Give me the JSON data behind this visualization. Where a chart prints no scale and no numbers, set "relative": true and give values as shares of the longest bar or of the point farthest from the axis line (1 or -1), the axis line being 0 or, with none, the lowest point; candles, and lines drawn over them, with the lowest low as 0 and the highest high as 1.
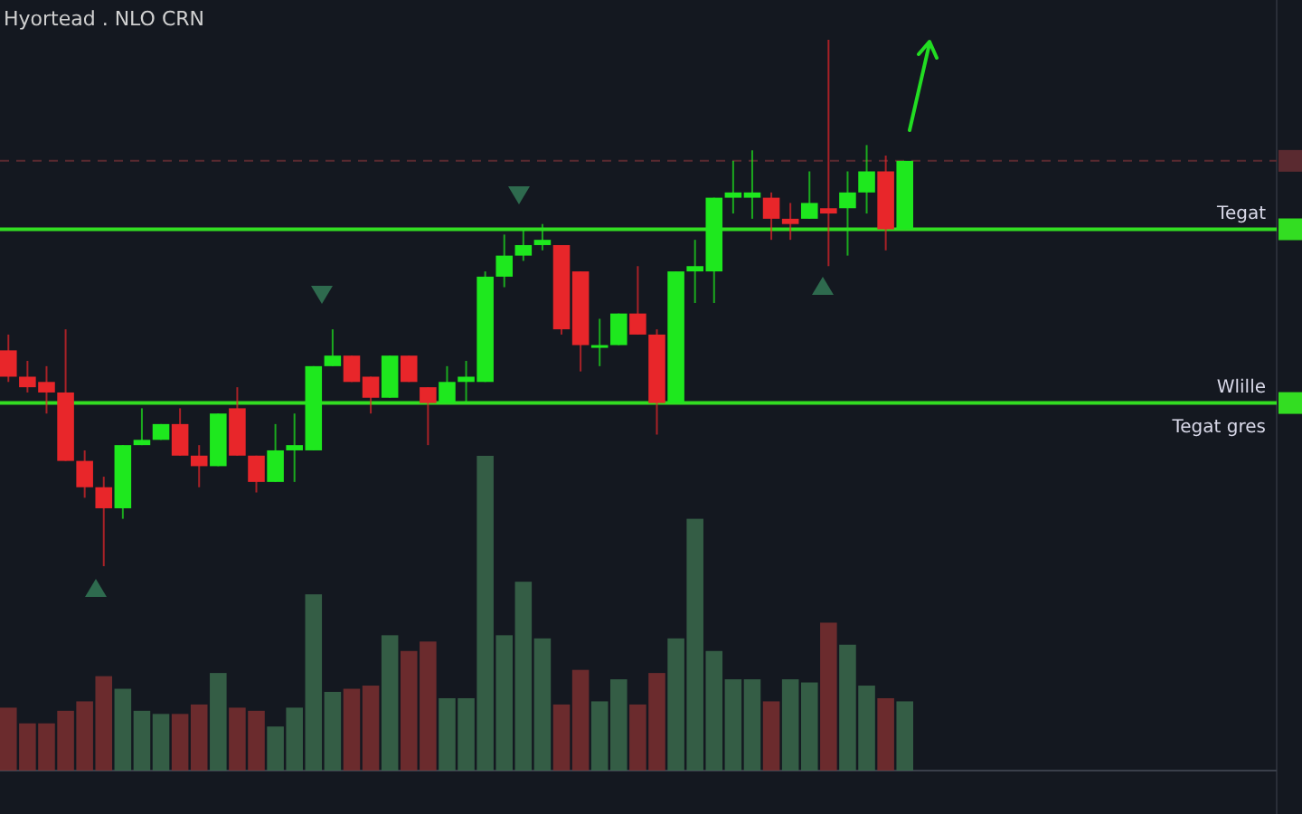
{
  "chart_data": [
    {
      "type": "candlestick",
      "title": "Hyortead . NLO CRN",
      "relative": true,
      "categories": [
        null,
        null,
        null,
        null,
        null,
        null,
        null,
        null,
        null,
        null,
        null,
        null,
        null,
        null,
        null,
        null,
        null,
        null,
        null,
        null,
        null,
        null,
        null,
        null,
        null,
        null,
        null,
        null,
        null,
        null,
        null,
        null,
        null,
        null,
        null,
        null,
        null,
        null,
        null,
        null,
        null,
        null,
        null,
        null,
        null,
        null,
        null,
        null
      ],
      "ohlc": [
        [
          0.41,
          0.44,
          0.35,
          0.36
        ],
        [
          0.36,
          0.39,
          0.33,
          0.34
        ],
        [
          0.35,
          0.38,
          0.29,
          0.33
        ],
        [
          0.33,
          0.45,
          0.2,
          0.2
        ],
        [
          0.2,
          0.22,
          0.13,
          0.15
        ],
        [
          0.15,
          0.17,
          0,
          0.11
        ],
        [
          0.11,
          0.23,
          0.09,
          0.23
        ],
        [
          0.23,
          0.3,
          0.23,
          0.24
        ],
        [
          0.24,
          0.27,
          0.24,
          0.27
        ],
        [
          0.27,
          0.3,
          0.21,
          0.21
        ],
        [
          0.21,
          0.23,
          0.15,
          0.19
        ],
        [
          0.19,
          0.29,
          0.19,
          0.29
        ],
        [
          0.3,
          0.34,
          0.21,
          0.21
        ],
        [
          0.21,
          0.21,
          0.14,
          0.16
        ],
        [
          0.16,
          0.27,
          0.16,
          0.22
        ],
        [
          0.22,
          0.29,
          0.16,
          0.23
        ],
        [
          0.22,
          0.38,
          0.22,
          0.38
        ],
        [
          0.38,
          0.45,
          0.38,
          0.4
        ],
        [
          0.4,
          0.4,
          0.35,
          0.35
        ],
        [
          0.36,
          0.36,
          0.29,
          0.32
        ],
        [
          0.32,
          0.4,
          0.32,
          0.4
        ],
        [
          0.4,
          0.4,
          0.35,
          0.35
        ],
        [
          0.34,
          0.34,
          0.23,
          0.31
        ],
        [
          0.31,
          0.38,
          0.31,
          0.35
        ],
        [
          0.35,
          0.39,
          0.31,
          0.36
        ],
        [
          0.35,
          0.56,
          0.35,
          0.55
        ],
        [
          0.55,
          0.63,
          0.53,
          0.59
        ],
        [
          0.59,
          0.64,
          0.58,
          0.61
        ],
        [
          0.61,
          0.65,
          0.6,
          0.62
        ],
        [
          0.61,
          0.61,
          0.44,
          0.45
        ],
        [
          0.56,
          0.56,
          0.37,
          0.42
        ],
        [
          0.42,
          0.47,
          0.38,
          0.42
        ],
        [
          0.42,
          0.48,
          0.42,
          0.48
        ],
        [
          0.48,
          0.57,
          0.44,
          0.44
        ],
        [
          0.44,
          0.45,
          0.25,
          0.31
        ],
        [
          0.31,
          0.56,
          0.31,
          0.56
        ],
        [
          0.56,
          0.62,
          0.5,
          0.57
        ],
        [
          0.56,
          0.7,
          0.5,
          0.7
        ],
        [
          0.7,
          0.77,
          0.67,
          0.71
        ],
        [
          0.7,
          0.79,
          0.66,
          0.71
        ],
        [
          0.7,
          0.71,
          0.62,
          0.66
        ],
        [
          0.66,
          0.69,
          0.62,
          0.65
        ],
        [
          0.66,
          0.75,
          0.66,
          0.69
        ],
        [
          0.68,
          1,
          0.57,
          0.67
        ],
        [
          0.68,
          0.75,
          0.59,
          0.71
        ],
        [
          0.71,
          0.8,
          0.67,
          0.75
        ],
        [
          0.75,
          0.78,
          0.6,
          0.64
        ],
        [
          0.64,
          0.77,
          0.64,
          0.77
        ]
      ],
      "colors": [
        "#e8262a",
        "#e8262a",
        "#e8262a",
        "#e8262a",
        "#e8262a",
        "#e8262a",
        "#1ee81e",
        "#1ee81e",
        "#1ee81e",
        "#e8262a",
        "#e8262a",
        "#1ee81e",
        "#e8262a",
        "#e8262a",
        "#1ee81e",
        "#1ee81e",
        "#1ee81e",
        "#1ee81e",
        "#e8262a",
        "#e8262a",
        "#1ee81e",
        "#e8262a",
        "#e8262a",
        "#1ee81e",
        "#1ee81e",
        "#1ee81e",
        "#1ee81e",
        "#1ee81e",
        "#1ee81e",
        "#e8262a",
        "#e8262a",
        "#1ee81e",
        "#1ee81e",
        "#e8262a",
        "#e8262a",
        "#1ee81e",
        "#1ee81e",
        "#1ee81e",
        "#1ee81e",
        "#1ee81e",
        "#e8262a",
        "#e8262a",
        "#1ee81e",
        "#e8262a",
        "#1ee81e",
        "#1ee81e",
        "#e8262a",
        "#1ee81e"
      ],
      "ref_lines": [
        {
          "axis": "y",
          "value": 0.64,
          "label": "Tegat",
          "color": "#33dd22"
        },
        {
          "axis": "y",
          "value": 0.31,
          "label": "Wlille",
          "color": "#33dd22"
        },
        {
          "axis": "y",
          "value": 0.77,
          "color": "#5a2a30",
          "line_style": "dashed"
        }
      ],
      "annotations": [
        "Tegat gres"
      ]
    },
    {
      "type": "bar",
      "relative": true,
      "categories": [
        null,
        null,
        null,
        null,
        null,
        null,
        null,
        null,
        null,
        null,
        null,
        null,
        null,
        null,
        null,
        null,
        null,
        null,
        null,
        null,
        null,
        null,
        null,
        null,
        null,
        null,
        null,
        null,
        null,
        null,
        null,
        null,
        null,
        null,
        null,
        null,
        null,
        null,
        null,
        null,
        null,
        null,
        null,
        null,
        null,
        null,
        null,
        null
      ],
      "values": [
        0.2,
        0.15,
        0.15,
        0.19,
        0.22,
        0.3,
        0.26,
        0.19,
        0.18,
        0.18,
        0.21,
        0.31,
        0.2,
        0.19,
        0.14,
        0.2,
        0.56,
        0.25,
        0.26,
        0.27,
        0.43,
        0.38,
        0.41,
        0.23,
        0.23,
        1,
        0.43,
        0.6,
        0.42,
        0.21,
        0.32,
        0.22,
        0.29,
        0.21,
        0.31,
        0.42,
        0.8,
        0.38,
        0.29,
        0.29,
        0.22,
        0.29,
        0.28,
        0.47,
        0.4,
        0.27,
        0.23,
        0.22
      ],
      "colors": [
        "#7a2f30",
        "#7a2f30",
        "#7a2f30",
        "#7a2f30",
        "#7a2f30",
        "#7a2f30",
        "#3a6a4c",
        "#3a6a4c",
        "#3a6a4c",
        "#7a2f30",
        "#7a2f30",
        "#3a6a4c",
        "#7a2f30",
        "#7a2f30",
        "#3a6a4c",
        "#3a6a4c",
        "#3a6a4c",
        "#3a6a4c",
        "#7a2f30",
        "#7a2f30",
        "#3a6a4c",
        "#7a2f30",
        "#7a2f30",
        "#3a6a4c",
        "#3a6a4c",
        "#3a6a4c",
        "#3a6a4c",
        "#3a6a4c",
        "#3a6a4c",
        "#7a2f30",
        "#7a2f30",
        "#3a6a4c",
        "#3a6a4c",
        "#7a2f30",
        "#7a2f30",
        "#3a6a4c",
        "#3a6a4c",
        "#3a6a4c",
        "#3a6a4c",
        "#3a6a4c",
        "#7a2f30",
        "#3a6a4c",
        "#3a6a4c",
        "#7a2f30",
        "#3a6a4c",
        "#3a6a4c",
        "#7a2f30",
        "#3a6a4c"
      ]
    }
  ]
}
